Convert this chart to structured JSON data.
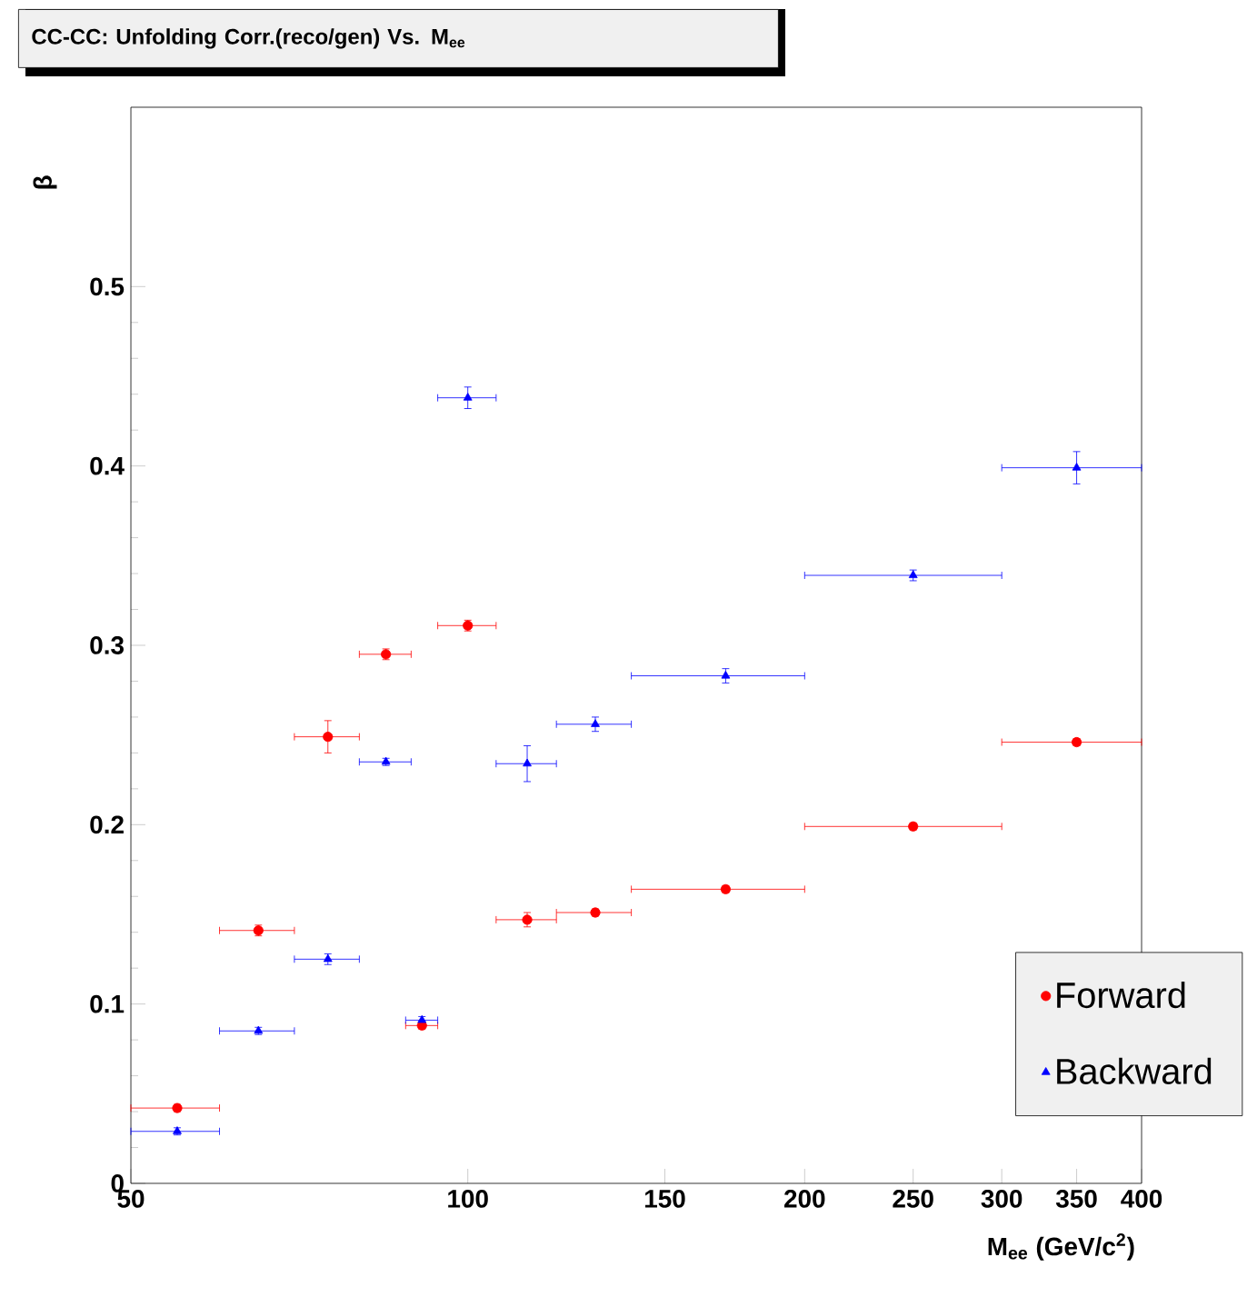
{
  "chart_data": {
    "type": "scatter",
    "title": "CC-CC: Unfolding Corr.(reco/gen) Vs. M$_{ee}$",
    "xlabel": "M$_{ee}$ (GeV/c$^{2}$)",
    "ylabel": "β",
    "x": [
      55,
      65,
      75,
      84.5,
      91,
      100,
      113,
      130,
      170,
      250,
      350
    ],
    "series": [
      {
        "name": "Forward",
        "color": "#ff0000",
        "marker": "circle",
        "values": [
          0.042,
          0.141,
          0.249,
          0.295,
          0.088,
          0.311,
          0.147,
          0.151,
          0.164,
          0.199,
          0.246
        ],
        "errors": [
          0.002,
          0.003,
          0.009,
          0.003,
          0.002,
          0.003,
          0.004,
          0.002,
          0.002,
          0.002,
          0.002
        ],
        "xerrors": [
          5,
          5,
          5,
          4.5,
          3,
          6,
          7,
          10,
          30,
          50,
          50
        ]
      },
      {
        "name": "Backward",
        "color": "#0000ff",
        "marker": "triangle",
        "values": [
          0.029,
          0.085,
          0.125,
          0.235,
          0.091,
          0.438,
          0.234,
          0.256,
          0.283,
          0.339,
          0.399
        ],
        "errors": [
          0.002,
          0.002,
          0.003,
          0.002,
          0.002,
          0.006,
          0.01,
          0.004,
          0.004,
          0.003,
          0.009
        ],
        "xerrors": [
          5,
          5,
          5,
          4.5,
          3,
          6,
          7,
          10,
          30,
          50,
          50
        ]
      }
    ],
    "log": "x",
    "xlim": [
      50,
      400
    ],
    "xticks": [
      50,
      100,
      150,
      200,
      250,
      300,
      350,
      400
    ],
    "ylim": [
      0,
      0.6
    ],
    "yticks": [
      0,
      0.1,
      0.2,
      0.3,
      0.4,
      0.5
    ],
    "legend": "bottom right"
  }
}
